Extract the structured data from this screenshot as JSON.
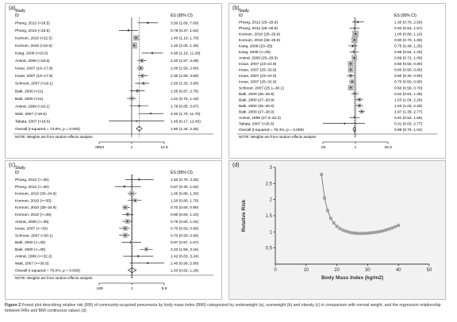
{
  "caption": {
    "label": "Figure 2",
    "text": "Forest plot describing relative risk (RR) of community-acquired pneumonia by body mass index (BMI) categorized by underweight (a), overweight (b) and obesity (c) in comparison with normal weight, and the regression relationship between RRs and BMI continuous values (d)."
  },
  "colors": {
    "border": "#bfbfbf",
    "box": "#b3b3b3",
    "line": "#000000",
    "curve": "#7f7f7f",
    "panel_d_bg": "#f2f2f2"
  },
  "panels": [
    {
      "id": "a",
      "label": "(a)",
      "col_study": "Study",
      "col_id": "ID",
      "col_es": "ES (95% CI)",
      "rows": [
        {
          "study": "Phung, 2012 (<18.5)",
          "es": "3.50 (1.60, 7.60)",
          "est": 3.5,
          "lo": 1.6,
          "hi": 7.6,
          "w": 3
        },
        {
          "study": "Phung, 2012 (<18.5)",
          "es": "0.78 (0.37, 1.64)",
          "est": 0.78,
          "lo": 0.37,
          "hi": 1.64,
          "w": 3
        },
        {
          "study": "Kornum, 2010 (<22.5)",
          "es": "1.40 (1.10, 1.70)",
          "est": 1.4,
          "lo": 1.1,
          "hi": 1.7,
          "w": 7
        },
        {
          "study": "Kornum, 2010 (<22.5)",
          "es": "1.20 (1.00, 1.40)",
          "est": 1.2,
          "lo": 1.0,
          "hi": 1.4,
          "w": 8
        },
        {
          "study": "Kang, 2008 (<18.5)",
          "es": "4.96 (2.18, 11.28)",
          "est": 4.96,
          "lo": 2.18,
          "hi": 11.28,
          "w": 3
        },
        {
          "study": "Amiral, 2008 (<18.5)",
          "es": "2.20 (1.57, 3.09)",
          "est": 2.2,
          "lo": 1.57,
          "hi": 3.09,
          "w": 5
        },
        {
          "study": "Inoue, 2007 (10–17.9)",
          "es": "2.00 (1.50, 2.60)",
          "est": 2.0,
          "lo": 1.5,
          "hi": 2.6,
          "w": 6
        },
        {
          "study": "Inoue, 2007 (10–17.9)",
          "es": "2.30 (1.60, 3.50)",
          "est": 2.3,
          "lo": 1.6,
          "hi": 3.5,
          "w": 5
        },
        {
          "study": "Schnoor, 2007 (<19.1)",
          "es": "2.50 (1.30, 3.90)",
          "est": 2.5,
          "lo": 1.3,
          "hi": 3.9,
          "w": 4
        },
        {
          "study": "Baik, 2000 (<21)",
          "es": "1.55 (0.87, 2.75)",
          "est": 1.55,
          "lo": 0.87,
          "hi": 2.75,
          "w": 4
        },
        {
          "study": "Baik, 2000 (<21)",
          "es": "1.01 (0.70, 1.43)",
          "est": 1.01,
          "lo": 0.7,
          "hi": 1.43,
          "w": 5
        },
        {
          "study": "Amiral, 1999 (<19.1)",
          "es": "1.78 (0.85, 3.67)",
          "est": 1.78,
          "lo": 0.85,
          "hi": 3.67,
          "w": 3
        },
        {
          "study": "Watt, 2007 (<18.5)",
          "es": "4.40 (1.70, 11.70)",
          "est": 4.4,
          "lo": 1.7,
          "hi": 11.7,
          "w": 2
        },
        {
          "study": "Takata, 2007 (<18.5)",
          "es": "1.45 (0.17, 12.45)",
          "est": 1.45,
          "lo": 0.17,
          "hi": 12.45,
          "w": 1
        }
      ],
      "overall": {
        "study": "Overall (I-squared = 73.8%, p = 0.000)",
        "es": "1.80 (1.44, 2.25)",
        "est": 1.8,
        "lo": 1.44,
        "hi": 2.25
      },
      "note": "NOTE: Weights are from random effects analysis",
      "axis": {
        "min": 0.0803,
        "max": 12.5,
        "ticks": [
          {
            "v": 0.0803,
            "label": ".0803"
          },
          {
            "v": 1,
            "label": "1"
          },
          {
            "v": 12.5,
            "label": "12.5"
          }
        ]
      }
    },
    {
      "id": "b",
      "label": "(b)",
      "col_study": "Study",
      "col_id": "ID",
      "col_es": "ES (95% CI)",
      "rows": [
        {
          "study": "Phung, 2012 (25–29.9)",
          "es": "1.30 (0.70, 2.50)",
          "est": 1.3,
          "lo": 0.7,
          "hi": 2.5,
          "w": 3
        },
        {
          "study": "Phung, 2012 (25–29.9)",
          "es": "0.92 (0.53, 1.57)",
          "est": 0.92,
          "lo": 0.53,
          "hi": 1.57,
          "w": 3
        },
        {
          "study": "Kornum, 2010 (25–29.9)",
          "es": "1.00 (0.80, 1.10)",
          "est": 1.0,
          "lo": 0.8,
          "hi": 1.1,
          "w": 8
        },
        {
          "study": "Kornum, 2010 (25–29.9)",
          "es": "0.90 (0.70, 1.00)",
          "est": 0.9,
          "lo": 0.7,
          "hi": 1.0,
          "w": 8
        },
        {
          "study": "Kang, 2008 (23–25)",
          "es": "0.75 (0.48, 1.25)",
          "est": 0.75,
          "lo": 0.48,
          "hi": 1.25,
          "w": 4
        },
        {
          "study": "Kang, 2008 (>=25)",
          "es": "0.86 (0.54, 1.40)",
          "est": 0.86,
          "lo": 0.54,
          "hi": 1.4,
          "w": 4
        },
        {
          "study": "Amiral, 2008 (25–29.9)",
          "es": "0.89 (0.72, 1.09)",
          "est": 0.89,
          "lo": 0.72,
          "hi": 1.09,
          "w": 7
        },
        {
          "study": "Inoue, 2007 (23–24.9)",
          "es": "0.60 (0.50, 0.80)",
          "est": 0.6,
          "lo": 0.5,
          "hi": 0.8,
          "w": 7
        },
        {
          "study": "Inoue, 2007 (25–32.9)",
          "es": "0.60 (0.50, 0.80)",
          "est": 0.6,
          "lo": 0.5,
          "hi": 0.8,
          "w": 7
        },
        {
          "study": "Inoue, 2007 (23–24.9)",
          "es": "0.60 (0.40, 0.90)",
          "est": 0.6,
          "lo": 0.4,
          "hi": 0.9,
          "w": 5
        },
        {
          "study": "Inoue, 2007 (25–32.9)",
          "es": "0.70 (0.50, 0.90)",
          "est": 0.7,
          "lo": 0.5,
          "hi": 0.9,
          "w": 6
        },
        {
          "study": "Schnoor, 2007 (25.1–30.1)",
          "es": "0.60 (0.50, 0.70)",
          "est": 0.6,
          "lo": 0.5,
          "hi": 0.7,
          "w": 7
        },
        {
          "study": "Baik, 2000 (25–26.9)",
          "es": "0.94 (0.63, 1.39)",
          "est": 0.94,
          "lo": 0.63,
          "hi": 1.39,
          "w": 5
        },
        {
          "study": "Baik, 2000 (27–28.9)",
          "es": "1.53 (1.04, 2.26)",
          "est": 1.53,
          "lo": 1.04,
          "hi": 2.26,
          "w": 5
        },
        {
          "study": "Baik, 2000 (25–26.9)",
          "es": "1.53 (1.03, 2.28)",
          "est": 1.53,
          "lo": 1.03,
          "hi": 2.28,
          "w": 5
        },
        {
          "study": "Baik, 2000 (27–28.9)",
          "es": "1.97 (1.39, 2.77)",
          "est": 1.97,
          "lo": 1.39,
          "hi": 2.77,
          "w": 5
        },
        {
          "study": "Amiral, 1999 (27.3–32.3)",
          "es": "0.91 (0.52, 1.58)",
          "est": 0.91,
          "lo": 0.52,
          "hi": 1.58,
          "w": 3
        },
        {
          "study": "Takata, 2007 (>25.0)",
          "es": "0.31 (0.03, 2.77)",
          "est": 0.31,
          "lo": 0.03,
          "hi": 2.77,
          "w": 1
        }
      ],
      "overall": {
        "study": "Overall (I-squared = 76.4%, p = 0.000)",
        "es": "0.89 (0.76, 1.04)",
        "est": 0.89,
        "lo": 0.76,
        "hi": 1.04
      },
      "note": "NOTE: Weights are from random effects analysis",
      "axis": {
        "min": 0.03,
        "max": 33.3,
        "ticks": [
          {
            "v": 0.03,
            "label": ".03"
          },
          {
            "v": 1,
            "label": "1"
          },
          {
            "v": 33.3,
            "label": "33.3"
          }
        ]
      }
    },
    {
      "id": "c",
      "label": "(c)",
      "col_study": "Study",
      "col_id": "ID",
      "col_es": "ES (95% CI)",
      "rows": [
        {
          "study": "Phung, 2012 (>=30)",
          "es": "1.50 (0.70, 3.30)",
          "est": 1.5,
          "lo": 0.7,
          "hi": 3.3,
          "w": 3
        },
        {
          "study": "Phung, 2012 (>=30)",
          "es": "0.67 (0.40, 1.64)",
          "est": 0.67,
          "lo": 0.4,
          "hi": 1.64,
          "w": 3
        },
        {
          "study": "Kornum, 2010 (30–34.9)",
          "es": "1.00 (0.80, 1.30)",
          "est": 1.0,
          "lo": 0.8,
          "hi": 1.3,
          "w": 6
        },
        {
          "study": "Kornum, 2010 (>=35)",
          "es": "1.20 (0.80, 1.70)",
          "est": 1.2,
          "lo": 0.8,
          "hi": 1.7,
          "w": 5
        },
        {
          "study": "Kornum, 2010 (30–34.9)",
          "es": "0.70 (0.60, 0.90)",
          "est": 0.7,
          "lo": 0.6,
          "hi": 0.9,
          "w": 6
        },
        {
          "study": "Kornum, 2010 (>=35)",
          "es": "0.80 (0.60, 1.10)",
          "est": 0.8,
          "lo": 0.6,
          "hi": 1.1,
          "w": 5
        },
        {
          "study": "Amiral, 2008 (>=30)",
          "es": "0.79 (0.60, 1.04)",
          "est": 0.79,
          "lo": 0.6,
          "hi": 1.04,
          "w": 6
        },
        {
          "study": "Inoue, 2007 (>=33)",
          "es": "0.70 (0.50, 0.90)",
          "est": 0.7,
          "lo": 0.5,
          "hi": 0.9,
          "w": 6
        },
        {
          "study": "Schnoor, 2007 (>30.1)",
          "es": "0.70 (0.50, 0.90)",
          "est": 0.7,
          "lo": 0.5,
          "hi": 0.9,
          "w": 6
        },
        {
          "study": "Baik, 2000 (>=30)",
          "es": "0.97 (0.57, 1.67)",
          "est": 0.97,
          "lo": 0.57,
          "hi": 1.67,
          "w": 4
        },
        {
          "study": "Baik, 2000 (>=30)",
          "es": "2.22 (1.56, 3.16)",
          "est": 2.22,
          "lo": 1.56,
          "hi": 3.16,
          "w": 5
        },
        {
          "study": "Amiral, 1999 (>=32.2)",
          "es": "1.42 (0.63, 3.24)",
          "est": 1.42,
          "lo": 0.63,
          "hi": 3.24,
          "w": 3
        },
        {
          "study": "Watt, 2007 (>=36.6)",
          "es": "2.40 (0.90, 5.90)",
          "est": 2.4,
          "lo": 0.9,
          "hi": 5.9,
          "w": 2
        }
      ],
      "overall": {
        "study": "Overall (I-squared = 75.0%, p = 0.000)",
        "es": "1.03 (0.82, 1.28)",
        "est": 1.03,
        "lo": 0.82,
        "hi": 1.28
      },
      "note": "NOTE: Weights are from random effects analysis",
      "axis": {
        "min": 0.169,
        "max": 5.9,
        "ticks": [
          {
            "v": 0.169,
            "label": ".169"
          },
          {
            "v": 1,
            "label": "1"
          },
          {
            "v": 5.9,
            "label": "5.9"
          }
        ]
      }
    }
  ],
  "chart_data": {
    "type": "line",
    "label": "(d)",
    "xlabel": "Body Mass Index (kg/m2)",
    "ylabel": "Relative Risk",
    "xlim": [
      0,
      50
    ],
    "ylim": [
      0,
      3
    ],
    "xticks": [
      0,
      10,
      20,
      30,
      40,
      50
    ],
    "yticks": [
      0.5,
      1,
      1.5,
      2,
      2.5,
      3
    ],
    "x": [
      15,
      16,
      17,
      18,
      19,
      20,
      21,
      22,
      23,
      24,
      25,
      26,
      27,
      28,
      29,
      30,
      31,
      32,
      33,
      34,
      35,
      36,
      37,
      38,
      39,
      40
    ],
    "y": [
      2.78,
      2.05,
      1.66,
      1.42,
      1.27,
      1.17,
      1.1,
      1.05,
      1.02,
      0.99,
      0.97,
      0.96,
      0.95,
      0.95,
      0.95,
      0.96,
      0.97,
      0.98,
      0.99,
      1.01,
      1.03,
      1.06,
      1.09,
      1.12,
      1.16,
      1.2
    ]
  }
}
